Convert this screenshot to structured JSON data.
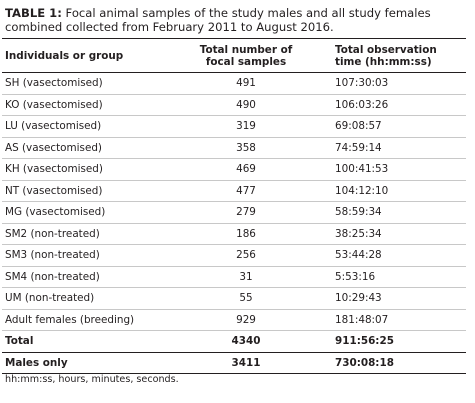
{
  "caption": {
    "label": "TABLE 1:",
    "text": " Focal animal samples of the study males and all study females combined collected from February 2011 to August 2016."
  },
  "headers": {
    "group": "Individuals or group",
    "samples_line1": "Total number of",
    "samples_line2": "focal samples",
    "time_line1": "Total observation",
    "time_line2": "time (hh:mm:ss)"
  },
  "rows": [
    {
      "group": "SH (vasectomised)",
      "samples": "491",
      "time": "107:30:03"
    },
    {
      "group": "KO (vasectomised)",
      "samples": "490",
      "time": "106:03:26"
    },
    {
      "group": "LU (vasectomised)",
      "samples": "319",
      "time": "69:08:57"
    },
    {
      "group": "AS (vasectomised)",
      "samples": "358",
      "time": "74:59:14"
    },
    {
      "group": "KH (vasectomised)",
      "samples": "469",
      "time": "100:41:53"
    },
    {
      "group": "NT (vasectomised)",
      "samples": "477",
      "time": "104:12:10"
    },
    {
      "group": "MG (vasectomised)",
      "samples": "279",
      "time": "58:59:34"
    },
    {
      "group": "SM2 (non-treated)",
      "samples": "186",
      "time": "38:25:34"
    },
    {
      "group": "SM3 (non-treated)",
      "samples": "256",
      "time": "53:44:28"
    },
    {
      "group": "SM4 (non-treated)",
      "samples": "31",
      "time": "5:53:16"
    },
    {
      "group": "UM (non-treated)",
      "samples": "55",
      "time": "10:29:43"
    },
    {
      "group": "Adult females (breeding)",
      "samples": "929",
      "time": "181:48:07"
    }
  ],
  "total": {
    "group": "Total",
    "samples": "4340",
    "time": "911:56:25"
  },
  "males_only": {
    "group": "Males only",
    "samples": "3411",
    "time": "730:08:18"
  },
  "footnote": "hh:mm:ss, hours, minutes, seconds."
}
